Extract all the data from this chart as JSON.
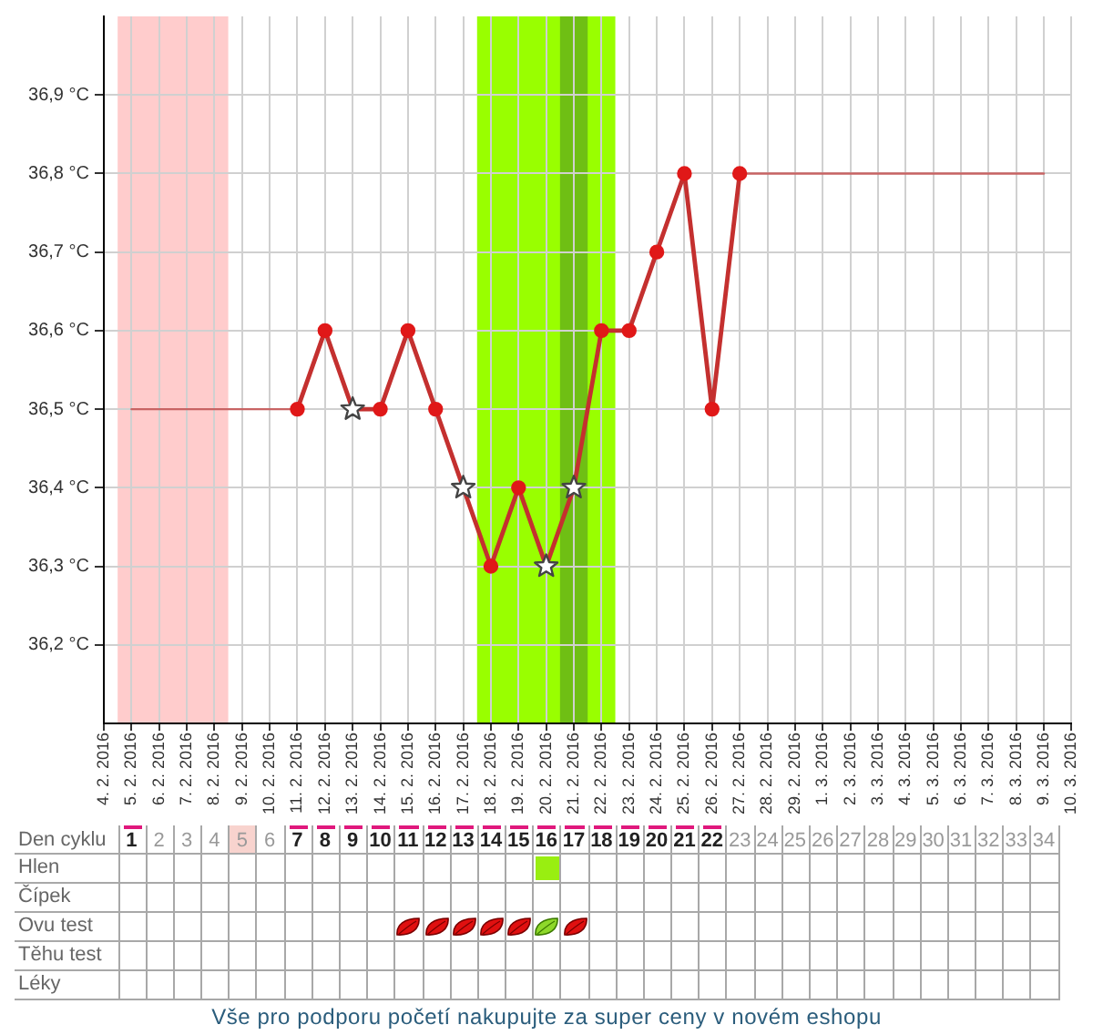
{
  "chart_data": [
    {
      "type": "line",
      "xlim": [
        "2016-02-04",
        "2016-03-10"
      ],
      "xticks": [
        {
          "value": "2016-02-04",
          "label": "4. 2. 2016"
        },
        {
          "value": "2016-02-05",
          "label": "5. 2. 2016"
        },
        {
          "value": "2016-02-06",
          "label": "6. 2. 2016"
        },
        {
          "value": "2016-02-07",
          "label": "7. 2. 2016"
        },
        {
          "value": "2016-02-08",
          "label": "8. 2. 2016"
        },
        {
          "value": "2016-02-09",
          "label": "9. 2. 2016"
        },
        {
          "value": "2016-02-10",
          "label": "10. 2. 2016"
        },
        {
          "value": "2016-02-11",
          "label": "11. 2. 2016"
        },
        {
          "value": "2016-02-12",
          "label": "12. 2. 2016"
        },
        {
          "value": "2016-02-13",
          "label": "13. 2. 2016"
        },
        {
          "value": "2016-02-14",
          "label": "14. 2. 2016"
        },
        {
          "value": "2016-02-15",
          "label": "15. 2. 2016"
        },
        {
          "value": "2016-02-16",
          "label": "16. 2. 2016"
        },
        {
          "value": "2016-02-17",
          "label": "17. 2. 2016"
        },
        {
          "value": "2016-02-18",
          "label": "18. 2. 2016"
        },
        {
          "value": "2016-02-19",
          "label": "19. 2. 2016"
        },
        {
          "value": "2016-02-20",
          "label": "20. 2. 2016"
        },
        {
          "value": "2016-02-21",
          "label": "21. 2. 2016"
        },
        {
          "value": "2016-02-22",
          "label": "22. 2. 2016"
        },
        {
          "value": "2016-02-23",
          "label": "23. 2. 2016"
        },
        {
          "value": "2016-02-24",
          "label": "24. 2. 2016"
        },
        {
          "value": "2016-02-25",
          "label": "25. 2. 2016"
        },
        {
          "value": "2016-02-26",
          "label": "26. 2. 2016"
        },
        {
          "value": "2016-02-27",
          "label": "27. 2. 2016"
        },
        {
          "value": "2016-02-28",
          "label": "28. 2. 2016"
        },
        {
          "value": "2016-02-29",
          "label": "29. 2. 2016"
        },
        {
          "value": "2016-03-01",
          "label": "1. 3. 2016"
        },
        {
          "value": "2016-03-02",
          "label": "2. 3. 2016"
        },
        {
          "value": "2016-03-03",
          "label": "3. 3. 2016"
        },
        {
          "value": "2016-03-04",
          "label": "4. 3. 2016"
        },
        {
          "value": "2016-03-05",
          "label": "5. 3. 2016"
        },
        {
          "value": "2016-03-06",
          "label": "6. 3. 2016"
        },
        {
          "value": "2016-03-07",
          "label": "7. 3. 2016"
        },
        {
          "value": "2016-03-08",
          "label": "8. 3. 2016"
        },
        {
          "value": "2016-03-09",
          "label": "9. 3. 2016"
        },
        {
          "value": "2016-03-10",
          "label": "10. 3. 2016"
        }
      ],
      "x2label": "Den cyklu",
      "x2lim": [
        0,
        35
      ],
      "x2ticks": [
        1,
        2,
        3,
        4,
        5,
        6,
        7,
        8,
        9,
        10,
        11,
        12,
        13,
        14,
        15,
        16,
        17,
        18,
        19,
        20,
        21,
        22,
        23,
        24,
        25,
        26,
        27,
        28,
        29,
        30,
        31,
        32,
        33,
        34
      ],
      "ylim": [
        36.1,
        37.0
      ],
      "yticks": [
        {
          "value": 36.2,
          "label": "36,2 °C"
        },
        {
          "value": 36.3,
          "label": "36,3 °C"
        },
        {
          "value": 36.4,
          "label": "36,4 °C"
        },
        {
          "value": 36.5,
          "label": "36,5 °C"
        },
        {
          "value": 36.6,
          "label": "36,6 °C"
        },
        {
          "value": 36.7,
          "label": "36,7 °C"
        },
        {
          "value": 36.8,
          "label": "36,8 °C"
        },
        {
          "value": 36.9,
          "label": "36,9 °C"
        }
      ],
      "grid": true,
      "bands": [
        {
          "axis": "x",
          "from": "2016-02-04T12:00",
          "to": "2016-02-08T12:00",
          "color": "#ffcccc"
        },
        {
          "axis": "x",
          "from": "2016-02-17T12:00",
          "to": "2016-02-22T12:00",
          "color": "#99ff00"
        },
        {
          "axis": "x",
          "from": "2016-02-20T12:00",
          "to": "2016-02-21T12:00",
          "color": "#6fbf14"
        }
      ],
      "series": [
        {
          "type": "line",
          "color": "#c86464",
          "marker": "none",
          "x": [
            "2016-02-05",
            "2016-02-06",
            "2016-02-07",
            "2016-02-08",
            "2016-02-09",
            "2016-02-10",
            "2016-02-11",
            "2016-02-12",
            "2016-02-13",
            "2016-02-14",
            "2016-02-15",
            "2016-02-16",
            "2016-02-17",
            "2016-02-18",
            "2016-02-19",
            "2016-02-20",
            "2016-02-21",
            "2016-02-22",
            "2016-02-23",
            "2016-02-24",
            "2016-02-25",
            "2016-02-26",
            "2016-02-27",
            "2016-02-28",
            "2016-02-29",
            "2016-03-01",
            "2016-03-02",
            "2016-03-03",
            "2016-03-04",
            "2016-03-05",
            "2016-03-06",
            "2016-03-07",
            "2016-03-08",
            "2016-03-09"
          ],
          "values": [
            36.5,
            36.5,
            36.5,
            36.5,
            36.5,
            36.5,
            36.5,
            null,
            null,
            null,
            null,
            null,
            null,
            null,
            null,
            null,
            null,
            null,
            null,
            null,
            null,
            null,
            36.8,
            36.8,
            36.8,
            36.8,
            36.8,
            36.8,
            36.8,
            36.8,
            36.8,
            36.8,
            36.8,
            36.8
          ]
        },
        {
          "type": "line",
          "color": "#c4302f",
          "marker": "none",
          "x": [
            "2016-02-11",
            "2016-02-12",
            "2016-02-13",
            "2016-02-14",
            "2016-02-15",
            "2016-02-16",
            "2016-02-17",
            "2016-02-18",
            "2016-02-19",
            "2016-02-20",
            "2016-02-21",
            "2016-02-22",
            "2016-02-23",
            "2016-02-24",
            "2016-02-25",
            "2016-02-26",
            "2016-02-27"
          ],
          "values": [
            36.5,
            36.6,
            36.5,
            36.5,
            36.6,
            36.5,
            36.4,
            36.3,
            36.4,
            36.3,
            36.4,
            36.6,
            36.6,
            36.7,
            36.8,
            36.5,
            36.8
          ]
        },
        {
          "type": "scatter",
          "color": "#e01818",
          "marker": "circle",
          "x": [
            "2016-02-11",
            "2016-02-12",
            "2016-02-14",
            "2016-02-15",
            "2016-02-16",
            "2016-02-18",
            "2016-02-19",
            "2016-02-22",
            "2016-02-23",
            "2016-02-24",
            "2016-02-25",
            "2016-02-26",
            "2016-02-27"
          ],
          "values": [
            36.5,
            36.6,
            36.5,
            36.6,
            36.5,
            36.3,
            36.4,
            36.6,
            36.6,
            36.7,
            36.8,
            36.5,
            36.8
          ]
        },
        {
          "type": "scatter",
          "color": "#ffffff",
          "marker": "star",
          "x": [
            "2016-02-13",
            "2016-02-17",
            "2016-02-20",
            "2016-02-21"
          ],
          "values": [
            36.5,
            36.4,
            36.3,
            36.4
          ]
        }
      ],
      "annotations": [
        "Vše pro podporu početí nakupujte za super ceny v novém eshopu"
      ]
    },
    {
      "type": "other",
      "annotations": [
        "Hlen",
        "Čípek",
        "Ovu test",
        "Těhu test",
        "Léky"
      ]
    }
  ]
}
